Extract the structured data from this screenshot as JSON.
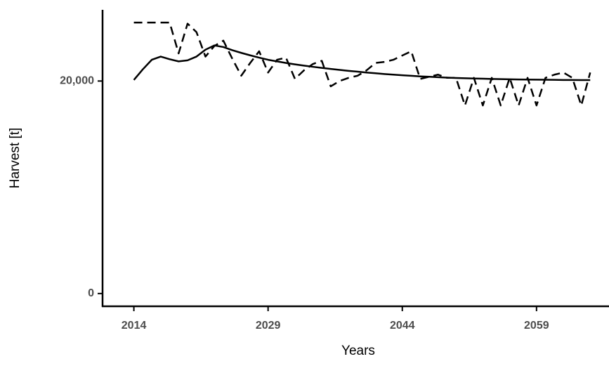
{
  "chart_data": {
    "type": "line",
    "x_label": "Years",
    "y_label": "Harvest [t]",
    "x": [
      2014,
      2015,
      2016,
      2017,
      2018,
      2019,
      2020,
      2021,
      2022,
      2023,
      2024,
      2025,
      2026,
      2027,
      2028,
      2029,
      2030,
      2031,
      2032,
      2033,
      2034,
      2035,
      2036,
      2037,
      2038,
      2039,
      2040,
      2041,
      2042,
      2043,
      2044,
      2045,
      2046,
      2047,
      2048,
      2049,
      2050,
      2051,
      2052,
      2053,
      2054,
      2055,
      2056,
      2057,
      2058,
      2059,
      2060,
      2061,
      2062,
      2063,
      2064,
      2065
    ],
    "series": [
      {
        "color": "#000000",
        "line_style": "dashed",
        "values": [
          25500,
          25500,
          25500,
          25500,
          25500,
          22600,
          25400,
          24600,
          22300,
          23300,
          23800,
          22100,
          20500,
          21700,
          22800,
          20800,
          22000,
          22200,
          20200,
          21000,
          21600,
          21900,
          19500,
          20000,
          20300,
          20500,
          21000,
          21700,
          21800,
          22000,
          22400,
          22800,
          20200,
          20400,
          20600,
          20300,
          20300,
          17700,
          20300,
          17700,
          20300,
          17700,
          20300,
          17700,
          20300,
          17700,
          20300,
          20600,
          20800,
          20300,
          17700,
          20800
        ]
      },
      {
        "color": "#000000",
        "line_style": "solid",
        "values": [
          20100,
          21100,
          22000,
          22300,
          22050,
          21850,
          21950,
          22300,
          22950,
          23350,
          23200,
          22900,
          22650,
          22420,
          22200,
          22000,
          21850,
          21700,
          21570,
          21450,
          21340,
          21240,
          21140,
          21050,
          20960,
          20880,
          20800,
          20730,
          20660,
          20600,
          20540,
          20490,
          20440,
          20400,
          20360,
          20320,
          20290,
          20260,
          20240,
          20220,
          20200,
          20180,
          20160,
          20150,
          20140,
          20130,
          20120,
          20110,
          20100,
          20100,
          20090,
          20090
        ]
      }
    ],
    "xlim": [
      2010.5,
      2067.1
    ],
    "xticks": [
      2014,
      2029,
      2044,
      2059
    ],
    "ylim": [
      -1200,
      26700
    ],
    "yticks": [
      0,
      {
        "value": 20000,
        "label": "20,000"
      }
    ],
    "grid": false
  }
}
